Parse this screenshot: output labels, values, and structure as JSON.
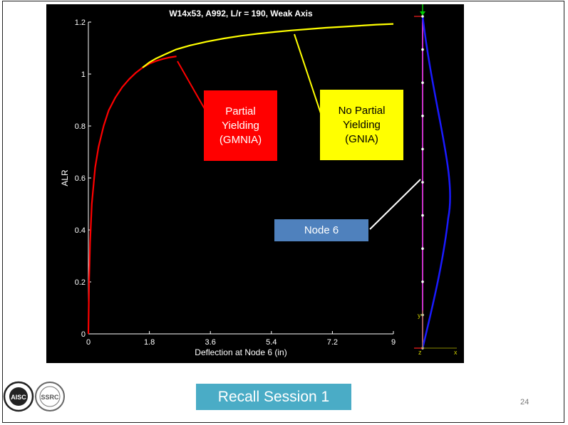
{
  "chart_data": {
    "type": "line",
    "title": "W14x53, A992, L/r = 190, Weak Axis",
    "xlabel": "Deflection at Node 6 (in)",
    "ylabel": "ALR",
    "xlim": [
      0,
      9
    ],
    "ylim": [
      0,
      1.2
    ],
    "x_ticks": [
      "0",
      "1.8",
      "3.6",
      "5.4",
      "7.2",
      "9"
    ],
    "y_ticks": [
      "0",
      "0.2",
      "0.4",
      "0.6",
      "0.8",
      "1",
      "1.2"
    ],
    "grid": false,
    "series": [
      {
        "name": "Partial Yielding (GMNIA)",
        "color": "#ff0000",
        "x": [
          0,
          0.02,
          0.05,
          0.1,
          0.2,
          0.3,
          0.45,
          0.6,
          0.8,
          1.0,
          1.2,
          1.4,
          1.6,
          1.8,
          2.0,
          2.2,
          2.4,
          2.6
        ],
        "y": [
          0.0,
          0.2,
          0.35,
          0.5,
          0.64,
          0.72,
          0.8,
          0.86,
          0.91,
          0.95,
          0.98,
          1.005,
          1.025,
          1.04,
          1.05,
          1.058,
          1.064,
          1.068
        ]
      },
      {
        "name": "No Partial Yielding (GNIA)",
        "color": "#ffff00",
        "x": [
          1.6,
          1.8,
          2.0,
          2.3,
          2.6,
          3.0,
          3.5,
          4.0,
          4.5,
          5.0,
          5.5,
          6.0,
          6.5,
          7.0,
          7.5,
          8.0,
          8.5,
          9.0
        ],
        "y": [
          1.025,
          1.045,
          1.06,
          1.078,
          1.095,
          1.11,
          1.125,
          1.137,
          1.147,
          1.155,
          1.162,
          1.168,
          1.173,
          1.178,
          1.182,
          1.186,
          1.19,
          1.193
        ]
      }
    ],
    "annotations": [
      {
        "text": "Partial\nYielding\n(GMNIA)",
        "background": "#ff0000",
        "color": "#ffffff"
      },
      {
        "text": "No Partial\nYielding\n(GNIA)",
        "background": "#ffff00",
        "color": "#000000"
      },
      {
        "text": "Node 6",
        "background": "#4f81bd",
        "color": "#ffffff"
      }
    ]
  },
  "model": {
    "axis_x": "x",
    "axis_y": "y",
    "axis_z": "z",
    "node_count": 11
  },
  "footer": {
    "recall_label": "Recall Session 1",
    "page_number": "24",
    "logo_aisc": "AISC",
    "logo_ssrc": "SSRC"
  },
  "colors": {
    "plot_background": "#000000",
    "axis": "#ffffff",
    "member": "#cc33cc",
    "deflected_shape": "#1a1aff",
    "recall_box": "#4aacc6"
  }
}
